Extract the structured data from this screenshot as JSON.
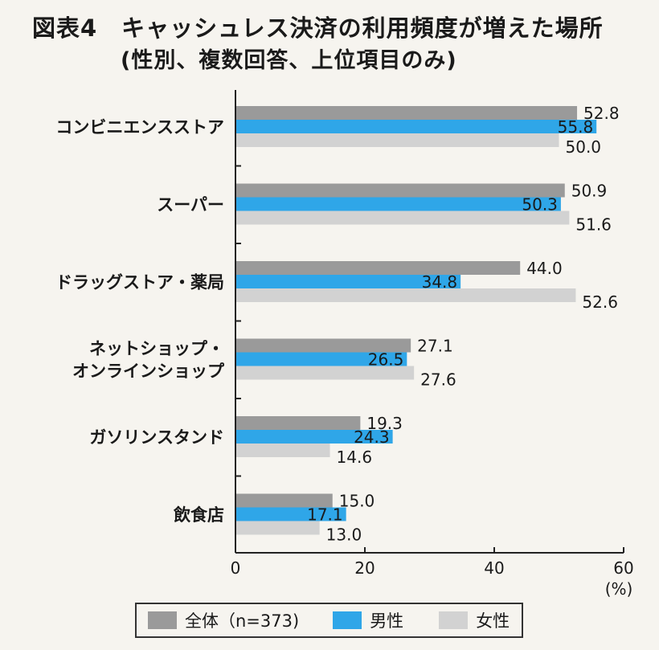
{
  "header": {
    "title": "図表4　キャッシュレス決済の利用頻度が増えた場所",
    "subtitle": "(性別、複数回答、上位項目のみ)"
  },
  "chart_data": {
    "type": "bar",
    "orientation": "horizontal",
    "categories": [
      [
        "コンビニエンスストア"
      ],
      [
        "スーパー"
      ],
      [
        "ドラッグストア・薬局"
      ],
      [
        "ネットショップ・",
        "オンラインショップ"
      ],
      [
        "ガソリンスタンド"
      ],
      [
        "飲食店"
      ]
    ],
    "series": [
      {
        "name": "全体（n=373)",
        "color": "#9a9a9a",
        "values": [
          52.8,
          50.9,
          44.0,
          27.1,
          19.3,
          15.0
        ]
      },
      {
        "name": "男性",
        "color": "#2fa6e8",
        "values": [
          55.8,
          50.3,
          34.8,
          26.5,
          24.3,
          17.1
        ]
      },
      {
        "name": "女性",
        "color": "#d2d2d2",
        "values": [
          50.0,
          51.6,
          52.6,
          27.6,
          14.6,
          13.0
        ]
      }
    ],
    "value_labels": [
      [
        "52.8",
        "50.9",
        "44.0",
        "27.1",
        "19.3",
        "15.0"
      ],
      [
        "55.8",
        "50.3",
        "34.8",
        "26.5",
        "24.3",
        "17.1"
      ],
      [
        "50.0",
        "51.6",
        "52.6",
        "27.6",
        "14.6",
        "13.0"
      ]
    ],
    "xlim": [
      0,
      60
    ],
    "xticks": [
      "0",
      "20",
      "40",
      "60"
    ],
    "xunit": "(%)",
    "legend_position": "bottom"
  }
}
